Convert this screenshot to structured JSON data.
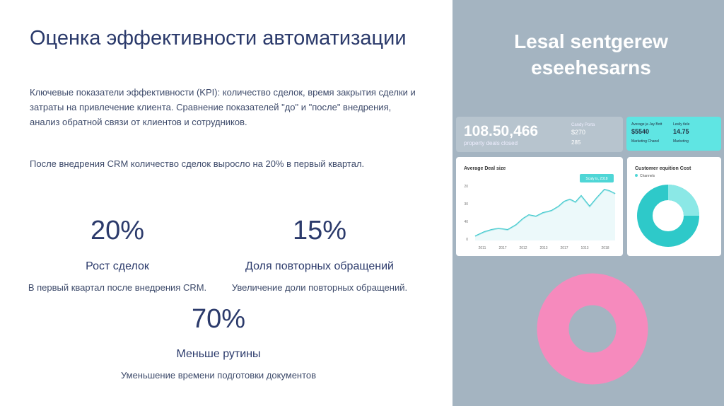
{
  "slide": {
    "title": "Оценка эффективности автоматизации",
    "paragraph_1": "Ключевые показатели эффективности (KPI): количество сделок, время закрытия сделки и затраты на привлечение клиента. Сравнение показателей \"до\" и \"после\" внедрения, анализ обратной связи от клиентов и сотрудников.",
    "paragraph_2": "После внедрения CRM количество сделок выросло на 20% в первый квартал.",
    "stats": [
      {
        "value": "20%",
        "label": "Рост сделок",
        "description": "В первый квартал после внедрения CRM."
      },
      {
        "value": "15%",
        "label": "Доля повторных обращений",
        "description": "Увеличение доли повторных обращений."
      },
      {
        "value": "70%",
        "label": "Меньше рутины",
        "description": "Уменьшение времени подготовки документов"
      }
    ]
  },
  "image": {
    "heading": [
      "Lesal sentgerew",
      "eseehesarns"
    ],
    "card_1": {
      "big": "108.50,466",
      "caption": "property deals closed",
      "side_title": "Candy Porta",
      "side_value": "$270",
      "side_extra": "285"
    },
    "card_2": {
      "title_a": "Average ja Jay Bott",
      "value_a": "$5540",
      "sub_a": "Marketing Chanel",
      "title_b": "Lesily tlele",
      "value_b": "14.75",
      "sub_b": "Marketing"
    },
    "line_card": {
      "title": "Average Deal size",
      "badge": "Scaly is, 2318",
      "yticks": [
        "20",
        "30",
        "40",
        "0"
      ],
      "xticks": [
        "2011",
        "2017",
        "2012",
        "2013",
        "2017",
        "1013",
        "2018"
      ]
    },
    "donut_card": {
      "title": "Customer equition Cost",
      "legend": "Channels"
    }
  }
}
